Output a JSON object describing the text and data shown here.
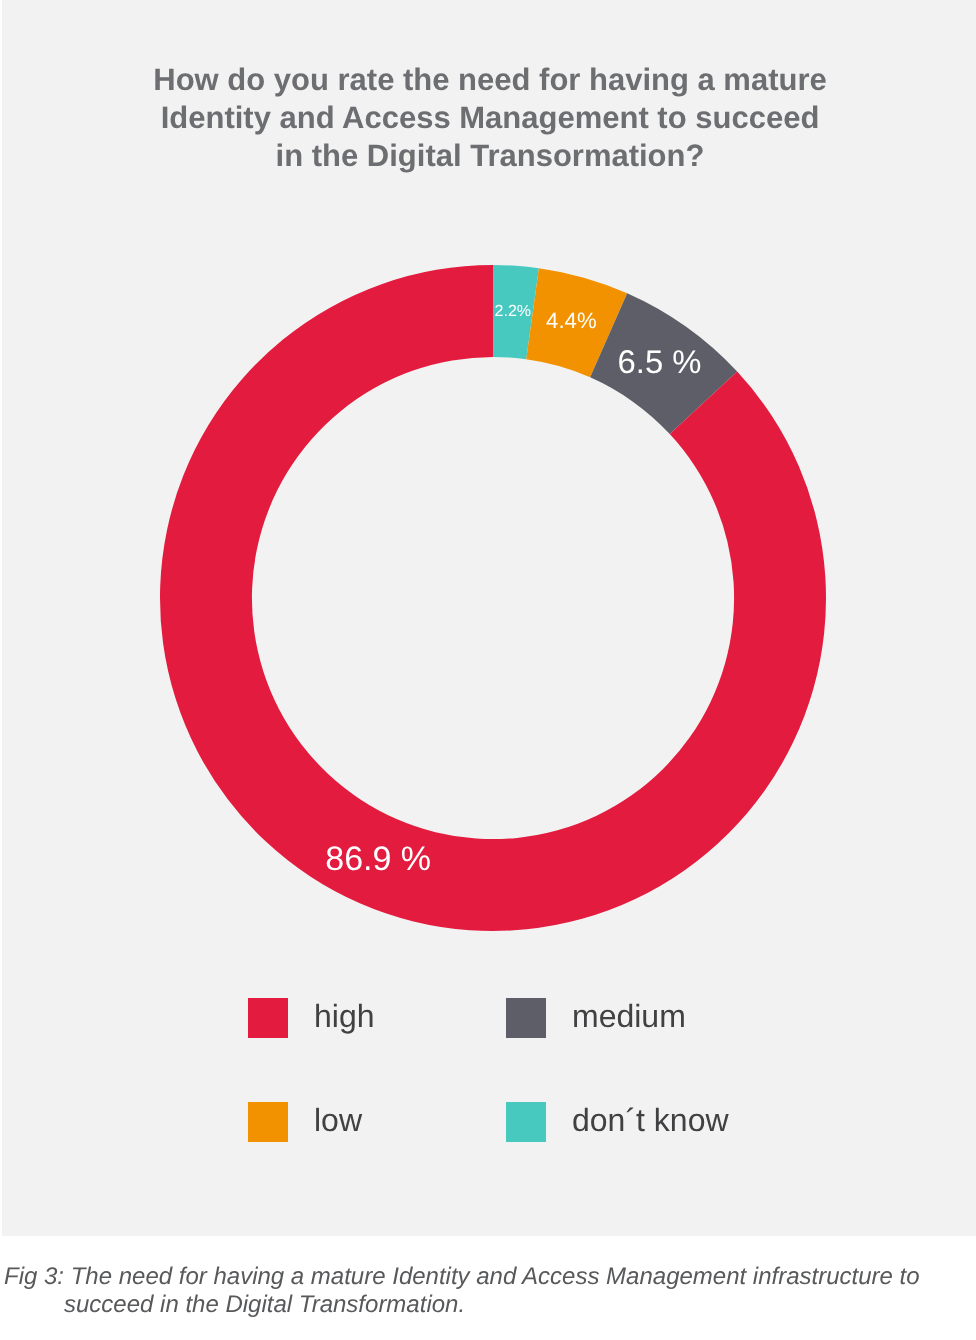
{
  "chart_data": {
    "type": "donut",
    "title": "How do you rate the need for having a mature Identity and Access Management to succeed in the Digital Transormation?",
    "categories": [
      "high",
      "medium",
      "low",
      "don´t know"
    ],
    "values": [
      86.9,
      6.5,
      4.4,
      2.2
    ],
    "colors": [
      "#e31b3e",
      "#5e5e68",
      "#f39200",
      "#47c9bf"
    ],
    "value_labels": [
      "86.9 %",
      "6.5 %",
      "4.4%",
      "2.2%"
    ],
    "legend": "bottom",
    "annotations": [
      "Fig 3: The need for having a mature Identity and Access Management infrastructure to succeed in the Digital Transformation."
    ]
  }
}
